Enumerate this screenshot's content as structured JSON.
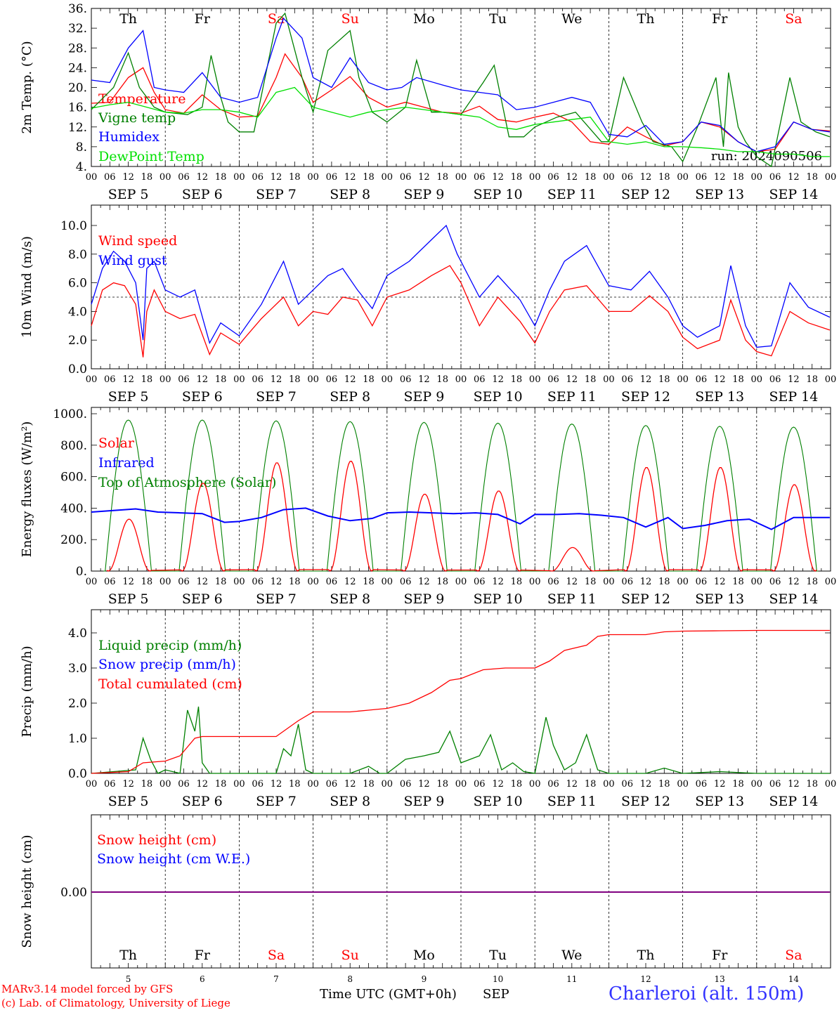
{
  "footer": {
    "model": "MARv3.14 model forced by GFS",
    "copyright": "(c) Lab. of Climatology, University of Liege",
    "time_axis_title": "Time UTC (GMT+0h)",
    "month": "SEP",
    "station": "Charleroi (alt. 150m)"
  },
  "colors": {
    "temperature": "#ff0000",
    "vigne": "#008000",
    "humidex": "#0000ff",
    "dewpoint": "#00e000",
    "wind_speed": "#ff0000",
    "wind_gust": "#0000ff",
    "solar": "#ff0000",
    "infrared": "#0000ff",
    "toa": "#008000",
    "liquid": "#008000",
    "snow_precip": "#0000ff",
    "total_cum": "#ff0000",
    "snow_height": "#800080",
    "weekend_day": "#ff0000"
  },
  "chart_data": [
    {
      "type": "line",
      "ylabel": "2m Temp. (°C)",
      "ylim": [
        4,
        36
      ],
      "yticks": [
        "36.",
        "32.",
        "28.",
        "24.",
        "20.",
        "16.",
        "12.",
        "8.",
        "4."
      ],
      "day_names": [
        "Th",
        "Fr",
        "Sa",
        "Su",
        "Mo",
        "Tu",
        "We",
        "Th",
        "Fr",
        "Sa"
      ],
      "hour_labels": [
        "00",
        "06",
        "12",
        "18"
      ],
      "date_labels": [
        "SEP 5",
        "SEP 6",
        "SEP 7",
        "SEP 8",
        "SEP 9",
        "SEP 10",
        "SEP 11",
        "SEP 12",
        "SEP 13",
        "SEP 14"
      ],
      "x_unit": "days since SEP 5 00 UTC",
      "annotation": "run: 2024090506",
      "legend": [
        "Temperature",
        "Vigne temp",
        "Humidex",
        "DewPoint Temp"
      ],
      "series": [
        {
          "name": "Temperature",
          "color_key": "temperature",
          "x": [
            0,
            0.25,
            0.5,
            0.7,
            0.85,
            1,
            1.25,
            1.5,
            1.75,
            2,
            2.25,
            2.5,
            2.62,
            2.85,
            3,
            3.25,
            3.5,
            3.75,
            4,
            4.25,
            4.5,
            4.75,
            5,
            5.25,
            5.5,
            5.75,
            6,
            6.25,
            6.5,
            6.75,
            7,
            7.25,
            7.5,
            7.75,
            8,
            8.25,
            8.5,
            8.75,
            9,
            9.25,
            9.5,
            9.75,
            9.99
          ],
          "y": [
            16.8,
            17,
            22,
            24,
            19,
            15.5,
            14.8,
            18.5,
            15.5,
            14,
            14.2,
            22,
            26.8,
            22,
            17,
            19.5,
            22.2,
            18,
            16,
            17,
            16,
            15,
            14.8,
            16.2,
            13.5,
            13,
            14,
            14.8,
            13,
            9,
            8.5,
            12,
            10,
            8.2,
            9,
            13,
            12,
            9,
            7,
            7.5,
            13,
            11.5,
            11.2
          ]
        },
        {
          "name": "Vigne temp",
          "color_key": "vigne",
          "x": [
            0,
            0.3,
            0.5,
            0.65,
            0.85,
            1,
            1.3,
            1.5,
            1.62,
            1.75,
            1.85,
            2,
            2.2,
            2.5,
            2.62,
            2.85,
            3,
            3.2,
            3.5,
            3.62,
            3.8,
            4,
            4.25,
            4.4,
            4.6,
            4.75,
            5,
            5.3,
            5.45,
            5.65,
            5.85,
            6,
            6.3,
            6.55,
            6.9,
            7,
            7.2,
            7.45,
            7.6,
            7.85,
            8,
            8.2,
            8.45,
            8.55,
            8.62,
            8.75,
            8.85,
            9,
            9.2,
            9.45,
            9.6,
            9.8,
            9.99
          ],
          "y": [
            15.5,
            20,
            27,
            20,
            16,
            15,
            14.5,
            16,
            26.5,
            18,
            13,
            11,
            11,
            33,
            35,
            22,
            15,
            27.5,
            31.5,
            22,
            15,
            13,
            16,
            25.5,
            15,
            15,
            14.5,
            21,
            24.5,
            10,
            10,
            12,
            14,
            15,
            9,
            9,
            22,
            13,
            9,
            8,
            5,
            12,
            22,
            8,
            23,
            12,
            9,
            6,
            4,
            22,
            13,
            11,
            10
          ]
        },
        {
          "name": "Humidex",
          "color_key": "humidex",
          "x": [
            0,
            0.25,
            0.5,
            0.7,
            0.85,
            1,
            1.25,
            1.5,
            1.75,
            2,
            2.25,
            2.5,
            2.6,
            2.85,
            3,
            3.25,
            3.5,
            3.75,
            4,
            4.2,
            4.4,
            4.75,
            5,
            5.25,
            5.5,
            5.75,
            6,
            6.25,
            6.5,
            6.75,
            7,
            7.25,
            7.5,
            7.75,
            8,
            8.25,
            8.5,
            8.75,
            9,
            9.25,
            9.5,
            9.75,
            9.99
          ],
          "y": [
            21.5,
            21,
            28,
            31.5,
            20,
            19.5,
            19,
            23,
            18,
            17,
            18,
            30,
            34,
            30,
            22,
            20,
            26,
            21,
            19.5,
            20,
            22,
            20.5,
            19.5,
            19,
            18.5,
            15.5,
            16,
            17,
            18,
            17,
            10.5,
            10,
            12.3,
            8.5,
            9,
            13,
            12.3,
            9,
            7,
            8,
            13,
            11.5,
            11
          ]
        },
        {
          "name": "DewPoint Temp",
          "color_key": "dewpoint",
          "x": [
            0,
            0.25,
            0.5,
            0.75,
            1,
            1.25,
            1.5,
            1.75,
            2,
            2.25,
            2.5,
            2.75,
            3,
            3.25,
            3.5,
            3.75,
            4,
            4.25,
            4.5,
            4.75,
            5,
            5.25,
            5.5,
            5.75,
            6,
            6.25,
            6.5,
            6.75,
            7,
            7.25,
            7.5,
            7.75,
            8,
            8.25,
            8.5,
            8.75,
            9,
            9.25,
            9.5,
            9.75,
            9.99
          ],
          "y": [
            15.8,
            16.5,
            17,
            16,
            15,
            14.8,
            15.5,
            15.5,
            15,
            14,
            19,
            20,
            16,
            15,
            14,
            15,
            15.5,
            16,
            15.5,
            15,
            14.5,
            14,
            12,
            11.5,
            12.5,
            13,
            13.5,
            14,
            9,
            8.5,
            9,
            8,
            8,
            7.8,
            7.5,
            7,
            7,
            6.5,
            6.5,
            6,
            6
          ]
        }
      ]
    },
    {
      "type": "line",
      "ylabel": "10m Wind (m/s)",
      "ylim": [
        0,
        11
      ],
      "yticks": [
        "10.0",
        "8.0",
        "6.0",
        "4.0",
        "2.0",
        "0.0"
      ],
      "reference_line": 5,
      "legend": [
        "Wind speed",
        "Wind gust"
      ],
      "series": [
        {
          "name": "Wind speed",
          "color_key": "wind_speed",
          "x": [
            0,
            0.15,
            0.3,
            0.45,
            0.6,
            0.7,
            0.75,
            0.85,
            1,
            1.2,
            1.4,
            1.6,
            1.75,
            2,
            2.3,
            2.6,
            2.8,
            3,
            3.2,
            3.4,
            3.6,
            3.8,
            4,
            4.3,
            4.6,
            4.85,
            5,
            5.25,
            5.5,
            5.8,
            6,
            6.2,
            6.4,
            6.7,
            7,
            7.3,
            7.55,
            7.8,
            8,
            8.2,
            8.5,
            8.65,
            8.85,
            9,
            9.2,
            9.45,
            9.7,
            9.99
          ],
          "y": [
            3,
            5.5,
            6,
            5.8,
            4.5,
            0.8,
            4,
            5.5,
            4,
            3.5,
            3.8,
            1,
            2.5,
            1.7,
            3.5,
            5,
            3,
            4,
            3.8,
            5,
            4.8,
            3,
            5,
            5.5,
            6.5,
            7.2,
            6,
            3,
            5,
            3.3,
            1.8,
            4,
            5.5,
            5.8,
            4,
            4,
            5.1,
            4,
            2.2,
            1.4,
            2,
            4.8,
            2,
            1.2,
            0.9,
            4,
            3.2,
            2.7
          ]
        },
        {
          "name": "Wind gust",
          "color_key": "wind_gust",
          "x": [
            0,
            0.15,
            0.3,
            0.45,
            0.6,
            0.7,
            0.75,
            0.85,
            1,
            1.2,
            1.4,
            1.6,
            1.75,
            2,
            2.3,
            2.6,
            2.8,
            3,
            3.2,
            3.4,
            3.6,
            3.8,
            4,
            4.3,
            4.6,
            4.8,
            4.95,
            5.25,
            5.5,
            5.8,
            6,
            6.2,
            6.4,
            6.7,
            7,
            7.3,
            7.55,
            7.8,
            8,
            8.2,
            8.5,
            8.65,
            8.85,
            9,
            9.2,
            9.45,
            9.7,
            9.99
          ],
          "y": [
            4.5,
            7,
            8.2,
            7.5,
            6,
            2,
            7,
            7.5,
            5.5,
            5,
            5.5,
            1.8,
            3.2,
            2.3,
            4.5,
            7.5,
            4.5,
            5.5,
            6.5,
            7,
            5.5,
            4.2,
            6.5,
            7.5,
            9,
            10,
            8,
            5,
            6.5,
            4.8,
            3,
            5.5,
            7.5,
            8.6,
            5.8,
            5.5,
            6.8,
            5,
            3,
            2.2,
            3,
            7.2,
            3,
            1.5,
            1.6,
            6,
            4.3,
            3.6
          ]
        }
      ]
    },
    {
      "type": "line",
      "ylabel": "Energy fluxes (W/m²)",
      "ylim": [
        0,
        1000
      ],
      "yticks": [
        "1000.",
        "800.",
        "600.",
        "400.",
        "200.",
        "0."
      ],
      "legend": [
        "Solar",
        "Infrared",
        "Top of Atmosphere (Solar)"
      ],
      "toa_peaks": [
        960,
        960,
        955,
        950,
        945,
        940,
        935,
        925,
        920,
        915
      ],
      "solar_peaks": [
        330,
        560,
        690,
        700,
        490,
        510,
        150,
        660,
        660,
        550
      ],
      "series": [
        {
          "name": "Infrared",
          "color_key": "infrared",
          "x": [
            0,
            0.3,
            0.6,
            0.9,
            1.2,
            1.5,
            1.8,
            2,
            2.3,
            2.6,
            2.9,
            3.2,
            3.5,
            3.8,
            4,
            4.3,
            4.6,
            4.9,
            5.2,
            5.5,
            5.8,
            6,
            6.3,
            6.6,
            6.9,
            7.2,
            7.5,
            7.8,
            8,
            8.3,
            8.6,
            8.9,
            9.2,
            9.5,
            9.8,
            9.99
          ],
          "y": [
            375,
            385,
            395,
            375,
            370,
            365,
            310,
            315,
            340,
            390,
            400,
            350,
            320,
            335,
            370,
            375,
            370,
            365,
            370,
            360,
            300,
            360,
            360,
            365,
            355,
            340,
            280,
            340,
            270,
            290,
            320,
            330,
            265,
            340,
            340,
            340
          ]
        }
      ]
    },
    {
      "type": "line",
      "ylabel": "Precip (mm/h)",
      "ylim": [
        0,
        4.5
      ],
      "yticks": [
        "4.0",
        "3.0",
        "2.0",
        "1.0",
        "0.0"
      ],
      "legend": [
        "Liquid precip (mm/h)",
        "Snow precip (mm/h)",
        "Total cumulated (cm)"
      ],
      "series": [
        {
          "name": "Liquid precip (mm/h)",
          "color_key": "liquid",
          "x": [
            0,
            0.6,
            0.7,
            0.8,
            0.9,
            1,
            1.2,
            1.3,
            1.4,
            1.45,
            1.5,
            1.6,
            2,
            2.5,
            2.6,
            2.7,
            2.8,
            2.9,
            3,
            3.5,
            3.75,
            3.9,
            4,
            4.25,
            4.5,
            4.7,
            4.85,
            5,
            5.25,
            5.4,
            5.55,
            5.7,
            5.85,
            6,
            6.15,
            6.25,
            6.4,
            6.55,
            6.7,
            6.85,
            7,
            7.5,
            7.75,
            8,
            8.5,
            9,
            9.99
          ],
          "y": [
            0,
            0.1,
            1,
            0.4,
            0,
            0.1,
            0,
            1.8,
            1.2,
            1.9,
            0.3,
            0,
            0,
            0,
            0.7,
            0.5,
            1.4,
            0.1,
            0,
            0,
            0.2,
            0,
            0,
            0.4,
            0.5,
            0.6,
            1.2,
            0.3,
            0.5,
            1.1,
            0.1,
            0.3,
            0.05,
            0,
            1.6,
            0.8,
            0.1,
            0.3,
            1.1,
            0.1,
            0,
            0,
            0.15,
            0,
            0.05,
            0,
            0
          ]
        },
        {
          "name": "Total cumulated (cm)",
          "color_key": "total_cum",
          "x": [
            0,
            0.5,
            0.7,
            1,
            1.2,
            1.4,
            1.5,
            2,
            2.5,
            2.8,
            3,
            3.5,
            3.75,
            4,
            4.3,
            4.6,
            4.85,
            5,
            5.3,
            5.6,
            6,
            6.2,
            6.4,
            6.7,
            6.85,
            7,
            7.5,
            7.75,
            8,
            8.5,
            9,
            9.99
          ],
          "y": [
            0,
            0.05,
            0.3,
            0.35,
            0.5,
            1,
            1.05,
            1.05,
            1.05,
            1.5,
            1.75,
            1.75,
            1.8,
            1.85,
            2,
            2.3,
            2.65,
            2.7,
            2.95,
            3,
            3,
            3.2,
            3.5,
            3.65,
            3.9,
            3.95,
            3.95,
            4.03,
            4.05,
            4.06,
            4.07,
            4.07
          ]
        }
      ]
    },
    {
      "type": "line",
      "ylabel": "Snow height (cm)",
      "ylim": [
        -1,
        1
      ],
      "yticks": [
        "0.00"
      ],
      "legend": [
        "Snow height (cm)",
        "Snow height (cm W.E.)"
      ],
      "day_names": [
        "Th",
        "Fr",
        "Sa",
        "Su",
        "Mo",
        "Tu",
        "We",
        "Th",
        "Fr",
        "Sa"
      ],
      "day_numbers": [
        "5",
        "6",
        "7",
        "8",
        "9",
        "10",
        "11",
        "12",
        "13",
        "14"
      ],
      "series": [
        {
          "name": "Snow height (cm)",
          "color_key": "snow_height",
          "x": [
            0,
            9.99
          ],
          "y": [
            0,
            0
          ]
        }
      ]
    }
  ]
}
